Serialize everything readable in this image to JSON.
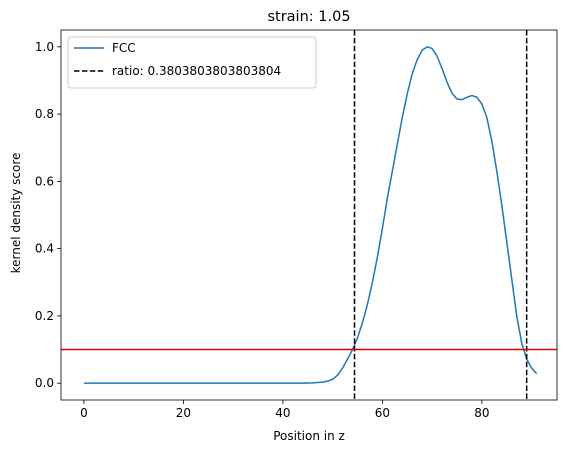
{
  "chart_data": {
    "type": "line",
    "title": "strain: 1.05",
    "xlabel": "Position in z",
    "ylabel": "kernel density score",
    "xlim": [
      -4.6,
      95.1
    ],
    "ylim": [
      -0.05,
      1.05
    ],
    "x_ticks": [
      0,
      20,
      40,
      60,
      80
    ],
    "x_tick_labels": [
      "0",
      "20",
      "40",
      "60",
      "80"
    ],
    "y_ticks": [
      0.0,
      0.2,
      0.4,
      0.6,
      0.8,
      1.0
    ],
    "y_tick_labels": [
      "0.0",
      "0.2",
      "0.4",
      "0.6",
      "0.8",
      "1.0"
    ],
    "grid": false,
    "legend_position": "upper-left",
    "series": [
      {
        "name": "FCC",
        "color": "#1f77b4",
        "style": "solid",
        "x": [
          0,
          5,
          10,
          15,
          20,
          25,
          30,
          35,
          40,
          44,
          46,
          48,
          49,
          50,
          51,
          52,
          53,
          54,
          55,
          56,
          57,
          58,
          59,
          60,
          61,
          62,
          63,
          64,
          65,
          66,
          67,
          68,
          69,
          70,
          71,
          72,
          73,
          74,
          75,
          76,
          77,
          78,
          79,
          80,
          81,
          82,
          83,
          84,
          85,
          86,
          87,
          88,
          89,
          90,
          91
        ],
        "y": [
          0.0,
          0.0,
          0.0,
          0.0,
          0.0,
          0.0,
          0.0,
          0.0,
          0.0,
          0.0,
          0.001,
          0.003,
          0.006,
          0.012,
          0.024,
          0.045,
          0.072,
          0.1,
          0.135,
          0.18,
          0.235,
          0.3,
          0.375,
          0.46,
          0.55,
          0.63,
          0.71,
          0.79,
          0.86,
          0.92,
          0.962,
          0.99,
          1.0,
          0.995,
          0.972,
          0.935,
          0.895,
          0.862,
          0.845,
          0.843,
          0.85,
          0.855,
          0.85,
          0.83,
          0.79,
          0.72,
          0.63,
          0.53,
          0.42,
          0.31,
          0.2,
          0.12,
          0.072,
          0.045,
          0.028
        ]
      }
    ],
    "vertical_lines": [
      {
        "x": 54.4,
        "color": "#000000",
        "style": "dashed",
        "legend": "ratio: 0.3803803803803804"
      },
      {
        "x": 89.0,
        "color": "#000000",
        "style": "dashed",
        "legend": ""
      }
    ],
    "horizontal_lines": [
      {
        "y": 0.1,
        "color": "#e00000",
        "style": "solid"
      }
    ]
  }
}
